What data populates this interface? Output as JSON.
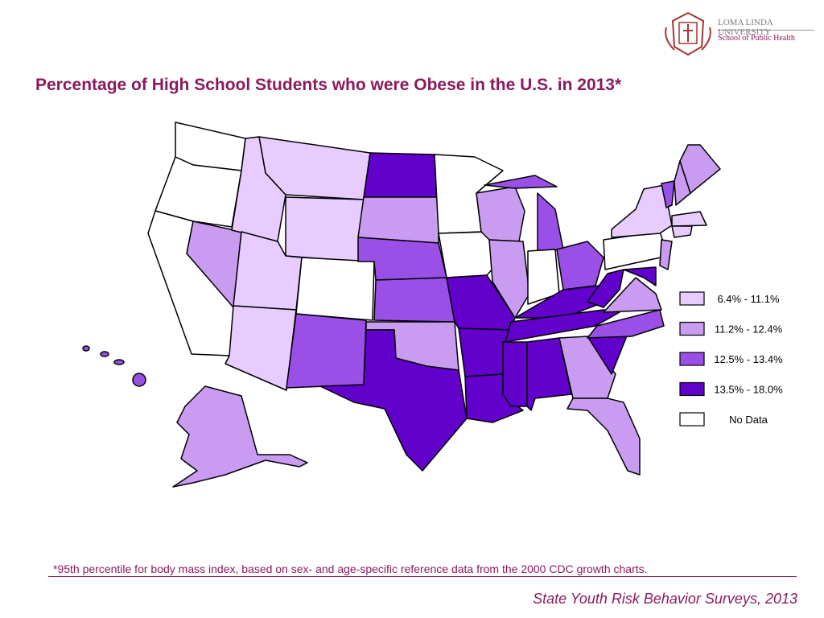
{
  "logo": {
    "name": "LOMA LINDA UNIVERSITY",
    "school": "School of Public Health"
  },
  "title": "Percentage of High School Students who were Obese in the U.S. in 2013*",
  "legend": {
    "items": [
      {
        "label": "6.4% - 11.1%",
        "color": "#e8ccff"
      },
      {
        "label": "11.2% - 12.4%",
        "color": "#c99cf2"
      },
      {
        "label": "12.5% - 13.4%",
        "color": "#9a4fe6"
      },
      {
        "label": "13.5% - 18.0%",
        "color": "#6200cc"
      },
      {
        "label": "No Data",
        "color": "#ffffff"
      }
    ]
  },
  "footnote": "*95th percentile for body mass index, based on sex- and age-specific reference data from the 2000 CDC growth charts.",
  "source": "State Youth Risk Behavior Surveys, 2013"
}
